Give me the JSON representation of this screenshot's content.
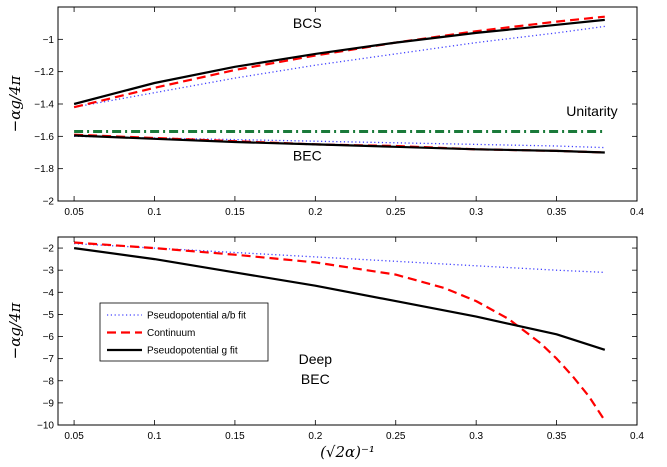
{
  "chart_data": [
    {
      "type": "line",
      "xlim": [
        0.04,
        0.4
      ],
      "ylim": [
        -2,
        -0.8
      ],
      "xticks": [
        0.05,
        0.1,
        0.15,
        0.2,
        0.25,
        0.3,
        0.35,
        0.4
      ],
      "xtick_labels": [
        "0.05",
        "0.1",
        "0.15",
        "0.2",
        "0.25",
        "0.3",
        "0.35",
        "0.4"
      ],
      "yticks": [
        -2,
        -1.8,
        -1.6,
        -1.4,
        -1.2,
        -1
      ],
      "ytick_labels": [
        "−2",
        "−1.8",
        "−1.6",
        "−1.4",
        "−1.2",
        "−1"
      ],
      "ylabel": "−αg/4π",
      "xlabel": "",
      "grid": false,
      "annotations": [
        {
          "text": "BCS",
          "x": 0.195,
          "y": -0.93
        },
        {
          "text": "Unitarity",
          "x": 0.372,
          "y": -1.475
        },
        {
          "text": "BEC",
          "x": 0.195,
          "y": -1.75
        }
      ],
      "series": [
        {
          "style": "dotted",
          "color": "#4040ff",
          "x": [
            0.05,
            0.1,
            0.15,
            0.2,
            0.25,
            0.3,
            0.35,
            0.38
          ],
          "y": [
            -1.42,
            -1.33,
            -1.24,
            -1.16,
            -1.09,
            -1.02,
            -0.96,
            -0.92
          ]
        },
        {
          "style": "dashed",
          "color": "#ff0000",
          "x": [
            0.05,
            0.1,
            0.15,
            0.2,
            0.25,
            0.3,
            0.35,
            0.38
          ],
          "y": [
            -1.42,
            -1.3,
            -1.19,
            -1.1,
            -1.02,
            -0.95,
            -0.89,
            -0.86
          ]
        },
        {
          "style": "solid",
          "color": "#000000",
          "x": [
            0.05,
            0.1,
            0.15,
            0.2,
            0.25,
            0.3,
            0.35,
            0.38
          ],
          "y": [
            -1.4,
            -1.27,
            -1.17,
            -1.09,
            -1.02,
            -0.96,
            -0.91,
            -0.88
          ]
        },
        {
          "style": "dashdot",
          "color": "#1a7a3a",
          "x": [
            0.05,
            0.38
          ],
          "y": [
            -1.57,
            -1.57
          ]
        },
        {
          "style": "dotted",
          "color": "#4040ff",
          "x": [
            0.05,
            0.1,
            0.15,
            0.2,
            0.25,
            0.3,
            0.35,
            0.38
          ],
          "y": [
            -1.6,
            -1.61,
            -1.62,
            -1.63,
            -1.64,
            -1.65,
            -1.66,
            -1.67
          ]
        },
        {
          "style": "dashed",
          "color": "#ff0000",
          "x": [
            0.05,
            0.1,
            0.15,
            0.2,
            0.25,
            0.3,
            0.35,
            0.38
          ],
          "y": [
            -1.59,
            -1.61,
            -1.63,
            -1.65,
            -1.66,
            -1.68,
            -1.69,
            -1.7
          ]
        },
        {
          "style": "solid",
          "color": "#000000",
          "x": [
            0.05,
            0.1,
            0.15,
            0.2,
            0.25,
            0.3,
            0.35,
            0.38
          ],
          "y": [
            -1.595,
            -1.615,
            -1.635,
            -1.65,
            -1.665,
            -1.68,
            -1.69,
            -1.7
          ]
        }
      ]
    },
    {
      "type": "line",
      "xlim": [
        0.04,
        0.4
      ],
      "ylim": [
        -10,
        -1.5
      ],
      "xticks": [
        0.05,
        0.1,
        0.15,
        0.2,
        0.25,
        0.3,
        0.35,
        0.4
      ],
      "xtick_labels": [
        "0.05",
        "0.1",
        "0.15",
        "0.2",
        "0.25",
        "0.3",
        "0.35",
        "0.4"
      ],
      "yticks": [
        -10,
        -9,
        -8,
        -7,
        -6,
        -5,
        -4,
        -3,
        -2
      ],
      "ytick_labels": [
        "−10",
        "−9",
        "−8",
        "−7",
        "−6",
        "−5",
        "−4",
        "−3",
        "−2"
      ],
      "ylabel": "−αg/4π",
      "xlabel": "(√2α)⁻¹",
      "grid": false,
      "legend": {
        "placement": "lower-left",
        "entries": [
          {
            "label": "Pseudopotential a/b fit",
            "style": "dotted",
            "color": "#4040ff"
          },
          {
            "label": "Continuum",
            "style": "dashed",
            "color": "#ff0000"
          },
          {
            "label": "Pseudopotential g fit",
            "style": "solid",
            "color": "#000000"
          }
        ]
      },
      "annotations": [
        {
          "text": "Deep",
          "x": 0.2,
          "y": -7.25
        },
        {
          "text": "BEC",
          "x": 0.2,
          "y": -8.15
        }
      ],
      "series": [
        {
          "label": "Pseudopotential a/b fit",
          "style": "dotted",
          "color": "#4040ff",
          "x": [
            0.05,
            0.1,
            0.15,
            0.2,
            0.25,
            0.3,
            0.35,
            0.38
          ],
          "y": [
            -1.8,
            -2.0,
            -2.2,
            -2.4,
            -2.6,
            -2.8,
            -3.0,
            -3.1
          ]
        },
        {
          "label": "Continuum",
          "style": "dashed",
          "color": "#ff0000",
          "x": [
            0.05,
            0.1,
            0.15,
            0.2,
            0.25,
            0.28,
            0.3,
            0.32,
            0.34,
            0.35,
            0.36,
            0.37,
            0.38
          ],
          "y": [
            -1.75,
            -2.0,
            -2.3,
            -2.65,
            -3.2,
            -3.8,
            -4.4,
            -5.2,
            -6.3,
            -7.0,
            -7.8,
            -8.7,
            -9.8
          ]
        },
        {
          "label": "Pseudopotential g fit",
          "style": "solid",
          "color": "#000000",
          "x": [
            0.05,
            0.1,
            0.15,
            0.2,
            0.25,
            0.3,
            0.35,
            0.38
          ],
          "y": [
            -2.0,
            -2.5,
            -3.1,
            -3.7,
            -4.4,
            -5.1,
            -5.9,
            -6.6
          ]
        }
      ]
    }
  ]
}
